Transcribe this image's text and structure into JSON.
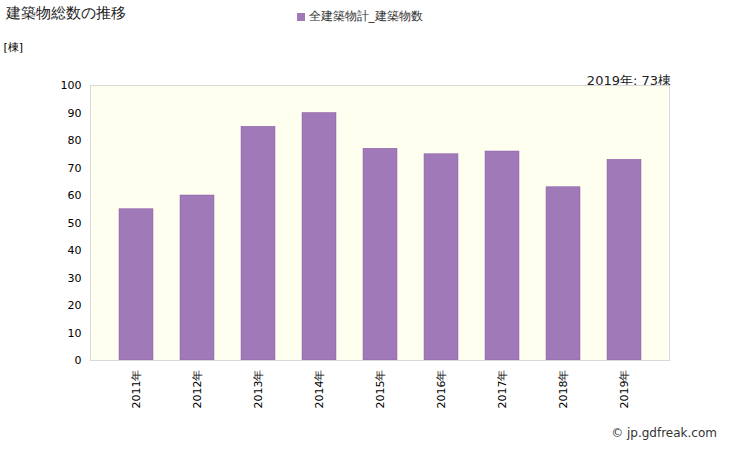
{
  "chart_data": {
    "type": "bar",
    "title": "建築物総数の推移",
    "y_label": "[棟]",
    "annotations": [
      "2019年: 73棟"
    ],
    "source": "© jp.gdfreak.com",
    "categories": [
      "2011年",
      "2012年",
      "2013年",
      "2014年",
      "2015年",
      "2016年",
      "2017年",
      "2018年",
      "2019年"
    ],
    "series": [
      {
        "name": "全建築物計_建築物数",
        "color": "#a07ab8",
        "values": [
          55,
          60,
          85,
          90,
          77,
          75,
          76,
          63,
          73
        ]
      }
    ],
    "ylim": [
      0,
      100
    ],
    "yticks": [
      0,
      10,
      20,
      30,
      40,
      50,
      60,
      70,
      80,
      90,
      100
    ],
    "grid": false,
    "legend": "top"
  }
}
